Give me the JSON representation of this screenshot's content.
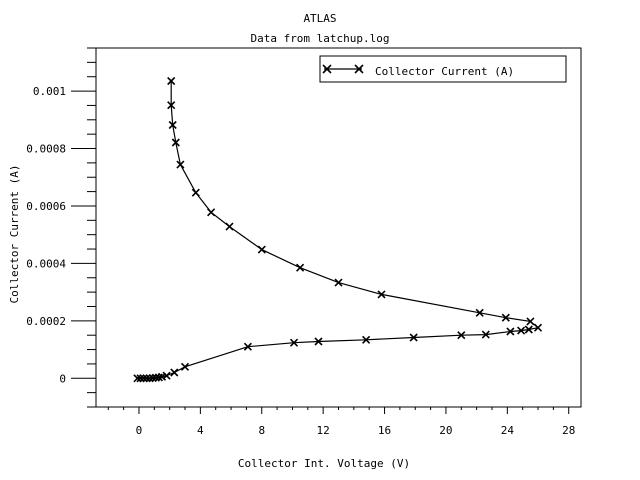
{
  "chart_data": {
    "type": "line",
    "title": "ATLAS",
    "subtitle": "Data from latchup.log",
    "xlabel": "Collector Int. Voltage (V)",
    "ylabel": "Collector Current (A)",
    "xlim": [
      -2.8,
      28.8
    ],
    "ylim": [
      -0.0001,
      0.00115
    ],
    "x_ticks": [
      0,
      4,
      8,
      12,
      16,
      20,
      24,
      28
    ],
    "y_ticks": [
      0,
      0.0002,
      0.0004,
      0.0006,
      0.0008,
      0.001
    ],
    "y_tick_labels": [
      "0",
      "0.0002",
      "0.0004",
      "0.0006",
      "0.0008",
      "0.001"
    ],
    "x_minor_step": 1,
    "y_minor_step": 5e-05,
    "grid": false,
    "legend_position": "top-right",
    "series": [
      {
        "name": "Collector Current (A)",
        "marker": "x",
        "x": [
          -0.1,
          0.1,
          0.3,
          0.5,
          0.7,
          0.9,
          1.1,
          1.3,
          1.5,
          1.8,
          2.3,
          3.0,
          7.1,
          10.1,
          11.7,
          14.8,
          17.9,
          21.0,
          22.6,
          24.2,
          24.9,
          25.4,
          26.0,
          25.5,
          23.9,
          22.2,
          15.8,
          13.0,
          10.5,
          8.0,
          5.9,
          4.7,
          3.7,
          2.7,
          2.4,
          2.2,
          2.1,
          2.1
        ],
        "y": [
          0.0,
          0.0,
          0.0,
          0.0,
          0.0,
          1e-06,
          2e-06,
          3e-06,
          5e-06,
          9e-06,
          2e-05,
          4e-05,
          0.00011,
          0.000124,
          0.000128,
          0.000134,
          0.000142,
          0.00015,
          0.000152,
          0.000163,
          0.000166,
          0.00017,
          0.000176,
          0.000198,
          0.000211,
          0.000228,
          0.000292,
          0.000333,
          0.000385,
          0.000448,
          0.000528,
          0.000578,
          0.000646,
          0.000744,
          0.000821,
          0.000882,
          0.000951,
          0.001035
        ]
      }
    ]
  }
}
